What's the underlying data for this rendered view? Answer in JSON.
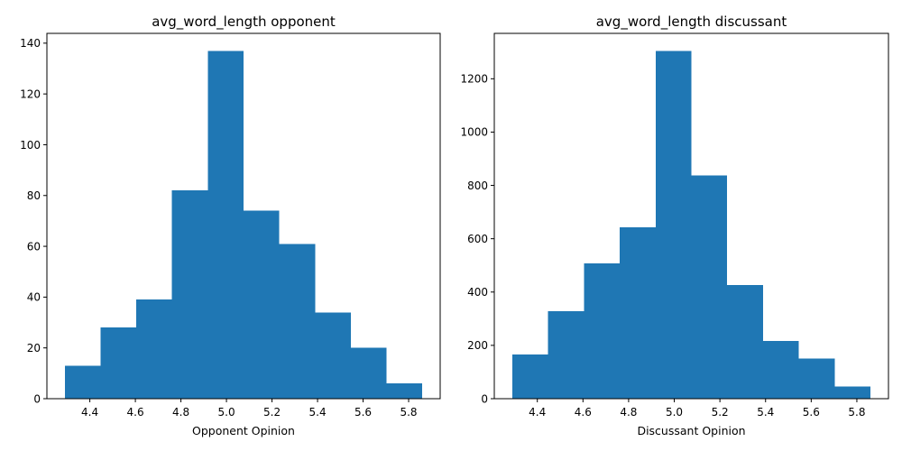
{
  "chart_data": [
    {
      "type": "bar",
      "subtype": "histogram",
      "title": "avg_word_length opponent",
      "xlabel": "Opponent Opinion",
      "ylabel": "",
      "bin_edges": [
        4.29,
        4.447,
        4.604,
        4.761,
        4.918,
        5.075,
        5.232,
        5.389,
        5.546,
        5.703,
        5.86
      ],
      "values": [
        13,
        28,
        39,
        82,
        137,
        74,
        61,
        34,
        20,
        6
      ],
      "xlim": [
        4.2115,
        5.9385
      ],
      "ylim": [
        0,
        143.85
      ],
      "xticks": [
        4.4,
        4.6,
        4.8,
        5.0,
        5.2,
        5.4,
        5.6,
        5.8
      ],
      "xtick_labels": [
        "4.4",
        "4.6",
        "4.8",
        "5.0",
        "5.2",
        "5.4",
        "5.6",
        "5.8"
      ],
      "yticks": [
        0,
        20,
        40,
        60,
        80,
        100,
        120,
        140
      ],
      "ytick_labels": [
        "0",
        "20",
        "40",
        "60",
        "80",
        "100",
        "120",
        "140"
      ],
      "color": "#1f77b4",
      "grid": false
    },
    {
      "type": "bar",
      "subtype": "histogram",
      "title": "avg_word_length discussant",
      "xlabel": "Discussant Opinion",
      "ylabel": "",
      "bin_edges": [
        4.29,
        4.447,
        4.604,
        4.761,
        4.918,
        5.075,
        5.232,
        5.389,
        5.546,
        5.703,
        5.86
      ],
      "values": [
        165,
        328,
        508,
        643,
        1305,
        838,
        427,
        216,
        151,
        45
      ],
      "xlim": [
        4.2115,
        5.9385
      ],
      "ylim": [
        0,
        1370.25
      ],
      "xticks": [
        4.4,
        4.6,
        4.8,
        5.0,
        5.2,
        5.4,
        5.6,
        5.8
      ],
      "xtick_labels": [
        "4.4",
        "4.6",
        "4.8",
        "5.0",
        "5.2",
        "5.4",
        "5.6",
        "5.8"
      ],
      "yticks": [
        0,
        200,
        400,
        600,
        800,
        1000,
        1200
      ],
      "ytick_labels": [
        "0",
        "200",
        "400",
        "600",
        "800",
        "1000",
        "1200"
      ],
      "color": "#1f77b4",
      "grid": false
    }
  ]
}
